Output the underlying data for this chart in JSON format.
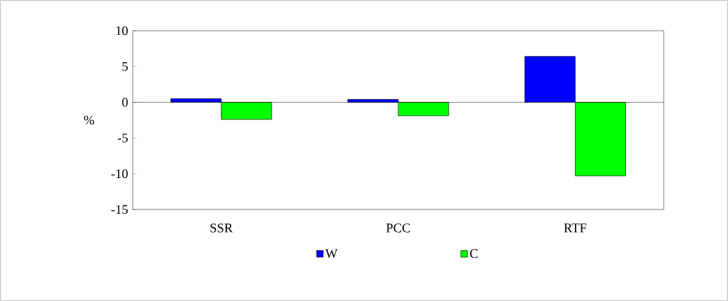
{
  "chart_data": {
    "type": "bar",
    "ylabel": "%",
    "categories": [
      "SSR",
      "PCC",
      "RTF"
    ],
    "series": [
      {
        "name": "W",
        "color": "#0000ff",
        "values": [
          0.5,
          0.4,
          6.4
        ]
      },
      {
        "name": "C",
        "color": "#00ff00",
        "values": [
          -2.4,
          -1.9,
          -10.3
        ]
      }
    ],
    "ylim": [
      -15,
      10
    ],
    "yticks": [
      -15,
      -10,
      -5,
      0,
      5,
      10
    ],
    "legend": "bottom"
  }
}
